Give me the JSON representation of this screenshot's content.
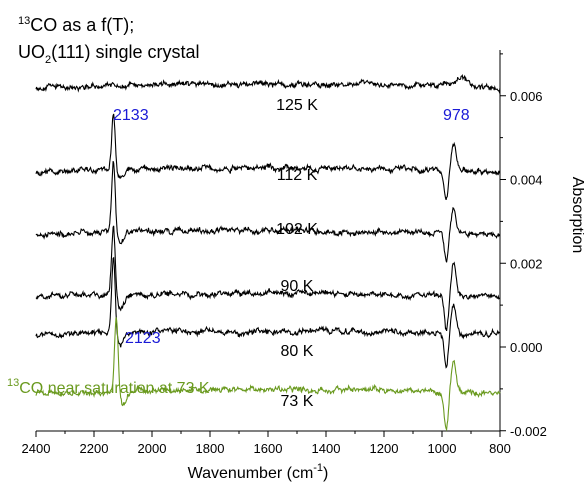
{
  "chart_data": {
    "type": "line",
    "title_lines": {
      "line1": {
        "sup": "13",
        "text": "CO as a f(T);"
      },
      "line2": {
        "main": "UO",
        "sub": "2",
        "rest": "(111) single crystal"
      }
    },
    "xlabel": {
      "text": "Wavenumber (cm",
      "sup": "-1",
      "close": ")"
    },
    "ylabel": "Absorption",
    "xlim": [
      2400,
      800
    ],
    "ylim": [
      -0.002,
      0.007
    ],
    "x_ticks": [
      "2400",
      "2200",
      "2000",
      "1800",
      "1600",
      "1400",
      "1200",
      "1000",
      "800"
    ],
    "y_ticks": [
      "0.006",
      "0.004",
      "0.002",
      "0.000",
      "-0.002"
    ],
    "series": [
      {
        "label": "125 K",
        "offset": 0.0062,
        "peak_amp": 0.0,
        "dip_amp": 0.0,
        "noise": 5e-05,
        "color": "#000000"
      },
      {
        "label": "112 K",
        "offset": 0.0042,
        "peak_amp": 0.0013,
        "dip_amp": 0.0007,
        "noise": 5e-05,
        "color": "#000000"
      },
      {
        "label": "102 K",
        "offset": 0.0027,
        "peak_amp": 0.0017,
        "dip_amp": 0.0007,
        "noise": 5e-05,
        "color": "#000000"
      },
      {
        "label": "90 K",
        "offset": 0.0012,
        "peak_amp": 0.0017,
        "dip_amp": 0.0009,
        "noise": 5e-05,
        "color": "#000000"
      },
      {
        "label": "80 K",
        "offset": 0.0003,
        "peak_amp": 0.0018,
        "dip_amp": 0.0008,
        "noise": 5e-05,
        "color": "#000000"
      },
      {
        "label": "73 K",
        "offset": -0.0011,
        "peak_amp": 0.0018,
        "dip_amp": 0.0009,
        "noise": 5e-05,
        "color": "#6a9a1f"
      }
    ],
    "annotations": {
      "peak_2133": "2133",
      "peak_978": "978",
      "peak_2123": "2123",
      "saturation": {
        "sup": "13",
        "text": "CO near saturation at 73 K"
      }
    },
    "colors": {
      "axis": "#000000",
      "label_blue": "#1a1ad6",
      "green": "#6a9a1f"
    }
  }
}
